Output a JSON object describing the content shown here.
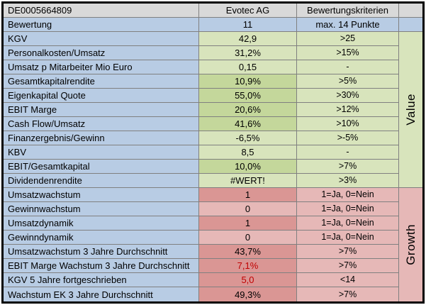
{
  "colors": {
    "header_gray": "#d9d9d9",
    "label_blue": "#b8cce4",
    "green_light": "#d8e4bc",
    "green_dark": "#c4d79b",
    "pink_light": "#e6b8b7",
    "pink_dark": "#da9694",
    "gridline": "#808080",
    "negative_red": "#c00000"
  },
  "header": {
    "isin": "DE0005664809",
    "company": "Evotec AG",
    "criteria_label": "Bewertungskriterien"
  },
  "score": {
    "label": "Bewertung",
    "value": "11",
    "max_label": "max. 14 Punkte"
  },
  "sections": {
    "value_label": "Value",
    "growth_label": "Growth"
  },
  "rows": [
    {
      "label": "KGV",
      "value": "42,9",
      "criteria": ">25",
      "section": "value",
      "shade": "light",
      "value_color": "black"
    },
    {
      "label": "Personalkosten/Umsatz",
      "value": "31,2%",
      "criteria": ">15%",
      "section": "value",
      "shade": "light",
      "value_color": "black"
    },
    {
      "label": "Umsatz p Mitarbeiter Mio Euro",
      "value": "0,15",
      "criteria": "-",
      "section": "value",
      "shade": "light",
      "value_color": "black"
    },
    {
      "label": "Gesamtkapitalrendite",
      "value": "10,9%",
      "criteria": ">5%",
      "section": "value",
      "shade": "dark",
      "value_color": "black"
    },
    {
      "label": "Eigenkapital Quote",
      "value": "55,0%",
      "criteria": ">30%",
      "section": "value",
      "shade": "dark",
      "value_color": "black"
    },
    {
      "label": "EBIT Marge",
      "value": "20,6%",
      "criteria": ">12%",
      "section": "value",
      "shade": "dark",
      "value_color": "black"
    },
    {
      "label": "Cash Flow/Umsatz",
      "value": "41,6%",
      "criteria": ">10%",
      "section": "value",
      "shade": "dark",
      "value_color": "black"
    },
    {
      "label": "Finanzergebnis/Gewinn",
      "value": "-6,5%",
      "criteria": ">-5%",
      "section": "value",
      "shade": "light",
      "value_color": "black"
    },
    {
      "label": "KBV",
      "value": "8,5",
      "criteria": "-",
      "section": "value",
      "shade": "light",
      "value_color": "black"
    },
    {
      "label": "EBIT/Gesamtkapital",
      "value": "10,0%",
      "criteria": ">7%",
      "section": "value",
      "shade": "dark",
      "value_color": "black"
    },
    {
      "label": "Dividendenrendite",
      "value": "#WERT!",
      "criteria": ">3%",
      "section": "value",
      "shade": "light",
      "value_color": "black"
    },
    {
      "label": "Umsatzwachstum",
      "value": "1",
      "criteria": "1=Ja, 0=Nein",
      "section": "growth",
      "shade": "dark",
      "value_color": "black"
    },
    {
      "label": "Gewinnwachstum",
      "value": "0",
      "criteria": "1=Ja, 0=Nein",
      "section": "growth",
      "shade": "light",
      "value_color": "black"
    },
    {
      "label": "Umsatzdynamik",
      "value": "1",
      "criteria": "1=Ja, 0=Nein",
      "section": "growth",
      "shade": "dark",
      "value_color": "black"
    },
    {
      "label": "Gewinndynamik",
      "value": "0",
      "criteria": "1=Ja, 0=Nein",
      "section": "growth",
      "shade": "light",
      "value_color": "black"
    },
    {
      "label": "Umsatzwachstum 3 Jahre Durchschnitt",
      "value": "43,7%",
      "criteria": ">7%",
      "section": "growth",
      "shade": "dark",
      "value_color": "black"
    },
    {
      "label": "EBIT Marge Wachstum 3 Jahre Durchschnitt",
      "value": "7,1%",
      "criteria": ">7%",
      "section": "growth",
      "shade": "dark",
      "value_color": "red"
    },
    {
      "label": "KGV 5 Jahre fortgeschrieben",
      "value": "5,0",
      "criteria": "<14",
      "section": "growth",
      "shade": "dark",
      "value_color": "red"
    },
    {
      "label": "Wachstum EK 3 Jahre Durchschnitt",
      "value": "49,3%",
      "criteria": ">7%",
      "section": "growth",
      "shade": "dark",
      "value_color": "black"
    }
  ]
}
